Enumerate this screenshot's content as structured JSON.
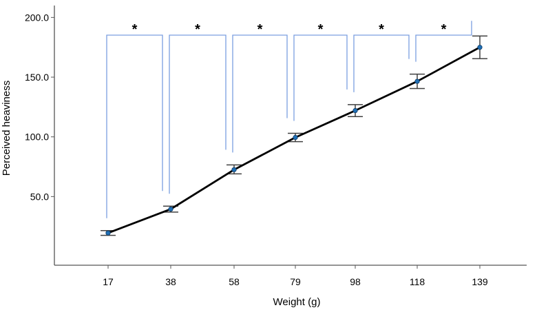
{
  "chart_data": {
    "type": "line",
    "xlabel": "Weight (g)",
    "ylabel": "Perceived heaviness",
    "x": [
      "17",
      "38",
      "58",
      "79",
      "98",
      "118",
      "139"
    ],
    "series": [
      {
        "values": [
          19.5,
          39.5,
          72.5,
          99.5,
          122,
          146.5,
          175
        ],
        "error_low": [
          17.5,
          37,
          69,
          96,
          117,
          140.5,
          165.5
        ],
        "error_high": [
          21.5,
          42,
          76.5,
          103,
          127,
          152.5,
          184.5
        ]
      }
    ],
    "ylim": [
      -7.5,
      210
    ],
    "yticks": [
      "50.0",
      "100.0",
      "150.0",
      "200.0"
    ],
    "ytick_values": [
      50,
      100,
      150,
      200
    ],
    "grid": false,
    "significance": [
      {
        "from": 0,
        "to": 1,
        "label": "*"
      },
      {
        "from": 1,
        "to": 2,
        "label": "*"
      },
      {
        "from": 2,
        "to": 3,
        "label": "*"
      },
      {
        "from": 3,
        "to": 4,
        "label": "*"
      },
      {
        "from": 4,
        "to": 5,
        "label": "*"
      },
      {
        "from": 5,
        "to": 6,
        "label": "*"
      }
    ],
    "colors": {
      "line": "#000000",
      "marker": "#1f6fb5",
      "error_bar": "#404040",
      "bracket": "#7a9ee0",
      "axis": "#555555"
    }
  }
}
